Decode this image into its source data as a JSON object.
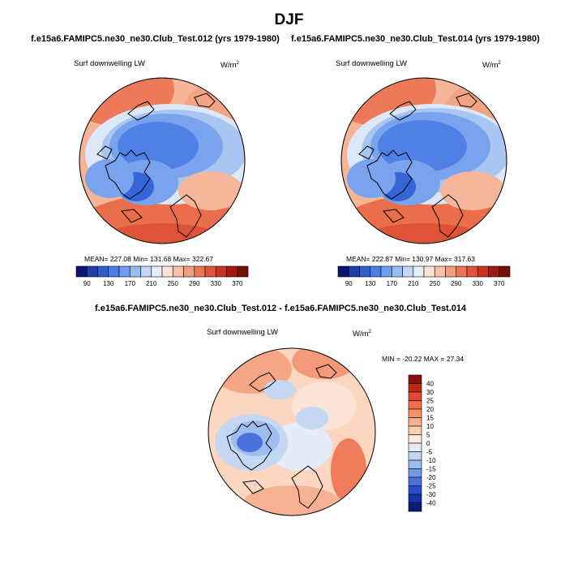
{
  "figure": {
    "title": "DJF",
    "subtitle_left": "f.e15a6.FAMIPC5.ne30_ne30.Club_Test.012 (yrs 1979-1980)",
    "subtitle_right": "f.e15a6.FAMIPC5.ne30_ne30.Club_Test.014 (yrs 1979-1980)",
    "diff_title": "f.e15a6.FAMIPC5.ne30_ne30.Club_Test.012 - f.e15a6.FAMIPC5.ne30_ne30.Club_Test.014"
  },
  "panels": {
    "left": {
      "variable": "Surf downwelling LW",
      "units_base": "W/m",
      "units_exp": "2",
      "stats": "MEAN= 227.08  Min= 131.68  Max= 322.67"
    },
    "right": {
      "variable": "Surf downwelling LW",
      "units_base": "W/m",
      "units_exp": "2",
      "stats": "MEAN= 222.87  Min= 130.97  Max= 317.63"
    },
    "diff": {
      "variable": "Surf downwelling LW",
      "units_base": "W/m",
      "units_exp": "2",
      "stats": "MIN = -20.22 MAX =  27.34"
    }
  },
  "chart_data": [
    {
      "type": "heatmap",
      "projection": "polar-stereographic-north",
      "variable": "Surf downwelling LW",
      "units": "W/m2",
      "mean": 227.08,
      "min": 131.68,
      "max": 322.67,
      "colorbar_ticks": [
        90,
        130,
        170,
        210,
        250,
        290,
        330,
        370
      ],
      "colorbar_colors": [
        "#0a1470",
        "#1f3fa6",
        "#2d5fd0",
        "#4a7ee6",
        "#6f9ef0",
        "#98bdf5",
        "#c3d8f7",
        "#e6eef9",
        "#fde4d6",
        "#f9c2a6",
        "#f49e7d",
        "#ee7656",
        "#e2513a",
        "#c9321f",
        "#a01a10",
        "#741005"
      ]
    },
    {
      "type": "heatmap",
      "projection": "polar-stereographic-north",
      "variable": "Surf downwelling LW",
      "units": "W/m2",
      "mean": 222.87,
      "min": 130.97,
      "max": 317.63,
      "colorbar_ticks": [
        90,
        130,
        170,
        210,
        250,
        290,
        330,
        370
      ],
      "colorbar_colors": [
        "#0a1470",
        "#1f3fa6",
        "#2d5fd0",
        "#4a7ee6",
        "#6f9ef0",
        "#98bdf5",
        "#c3d8f7",
        "#e6eef9",
        "#fde4d6",
        "#f9c2a6",
        "#f49e7d",
        "#ee7656",
        "#e2513a",
        "#c9321f",
        "#a01a10",
        "#741005"
      ]
    },
    {
      "type": "heatmap",
      "projection": "polar-stereographic-north",
      "variable": "Surf downwelling LW (difference)",
      "units": "W/m2",
      "min": -20.22,
      "max": 27.34,
      "colorbar_ticks": [
        40,
        30,
        25,
        20,
        15,
        10,
        5,
        0,
        -5,
        -10,
        -15,
        -20,
        -25,
        -30,
        -40
      ],
      "colorbar_colors": [
        "#8f0d0d",
        "#c0271b",
        "#e04a32",
        "#ef6d4b",
        "#f5906b",
        "#f8b08e",
        "#fbcfb3",
        "#fdeadd",
        "#e3ecf8",
        "#c4d8f3",
        "#9dbdee",
        "#7299e6",
        "#4a72dd",
        "#2a4fcb",
        "#1634a6",
        "#0a1e7a"
      ]
    }
  ]
}
